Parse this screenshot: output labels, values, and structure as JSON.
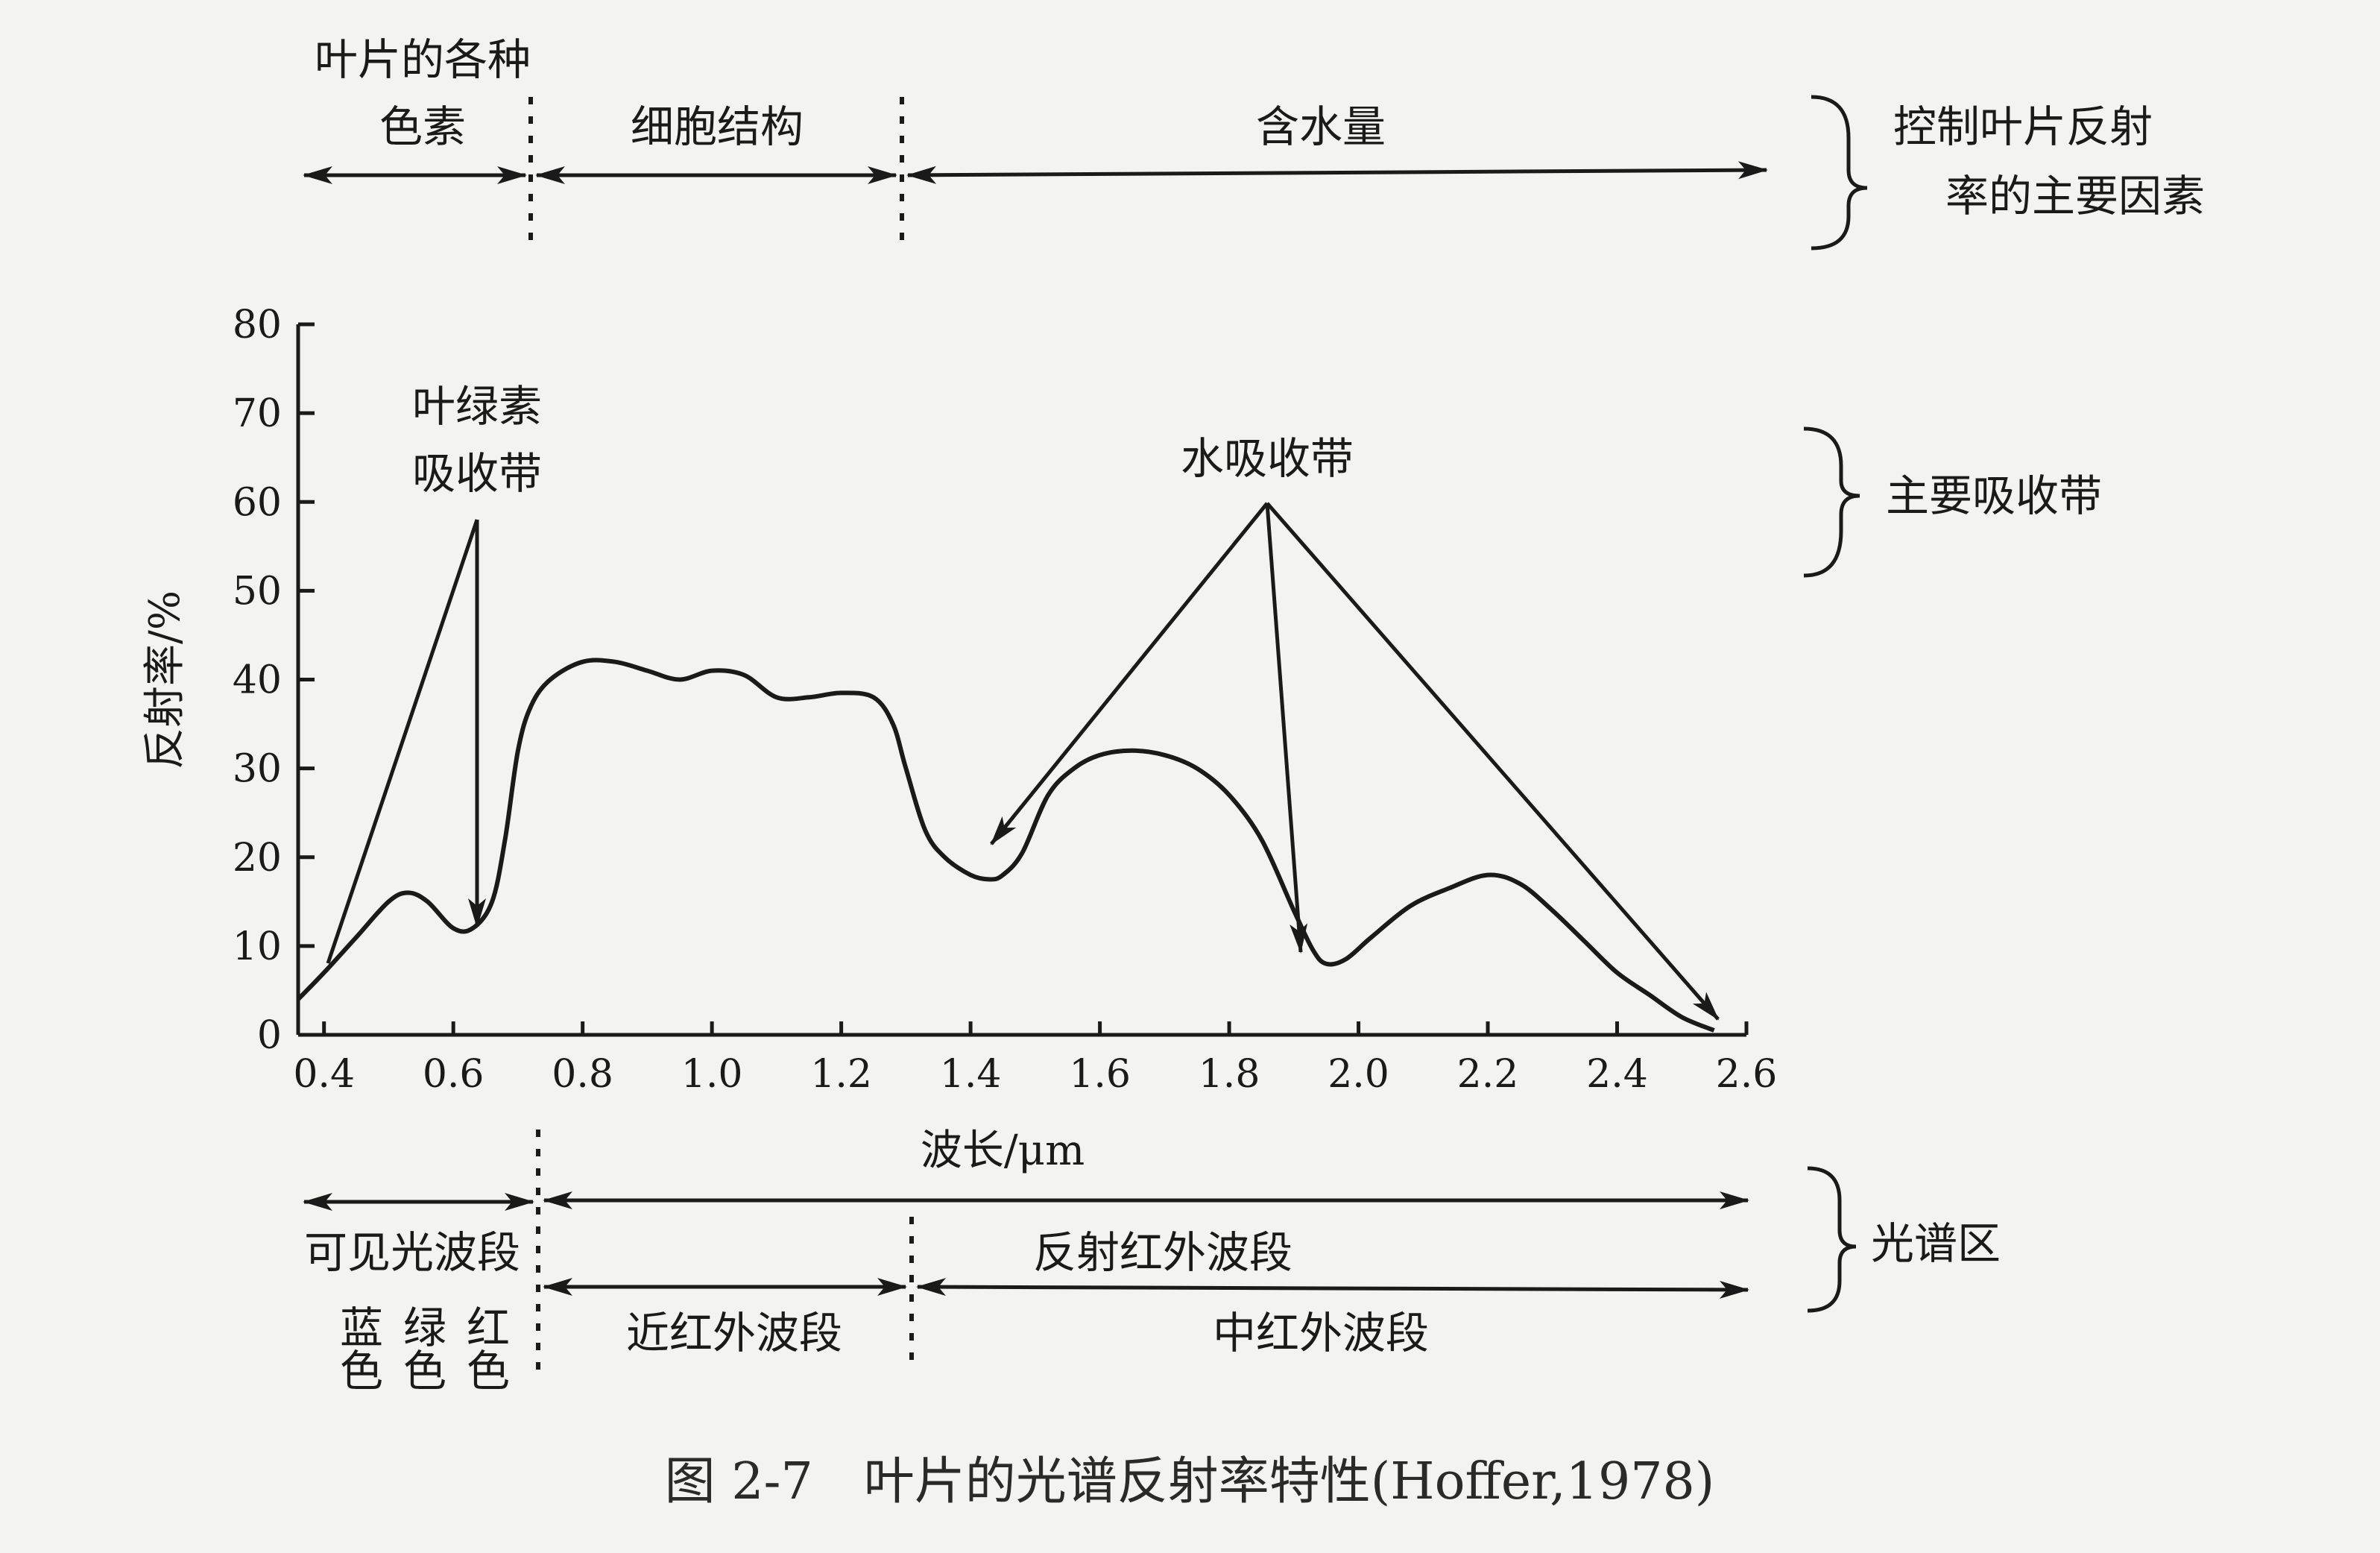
{
  "caption": "图 2-7　叶片的光谱反射率特性(Hoffer,1978)",
  "top": {
    "factors": [
      {
        "lines": [
          "叶片的各种",
          "色素"
        ]
      },
      {
        "lines": [
          "细胞结构"
        ]
      },
      {
        "lines": [
          "含水量"
        ]
      }
    ],
    "brace_label": [
      "控制叶片反射",
      "率的主要因素"
    ]
  },
  "absorption": {
    "chlorophyll": [
      "叶绿素",
      "吸收带"
    ],
    "water": "水吸收带",
    "brace_label": "主要吸收带"
  },
  "bottom": {
    "row1": {
      "left": "可见光波段",
      "right": "反射红外波段"
    },
    "row2": {
      "left": [
        "蓝色",
        "绿色",
        "红色"
      ],
      "mid": "近红外波段",
      "right": "中红外波段"
    },
    "brace_label": "光谱区"
  },
  "chart_data": {
    "type": "line",
    "xlabel": "波长/μm",
    "ylabel": "反射率/%",
    "xlim": [
      0.36,
      2.6
    ],
    "ylim": [
      0,
      80
    ],
    "xticks": [
      "0.4",
      "0.6",
      "0.8",
      "1.0",
      "1.2",
      "1.4",
      "1.6",
      "1.8",
      "2.0",
      "2.2",
      "2.4",
      "2.6"
    ],
    "yticks": [
      "0",
      "10",
      "20",
      "30",
      "40",
      "50",
      "60",
      "70",
      "80"
    ],
    "series": [
      {
        "x": [
          0.36,
          0.4,
          0.45,
          0.5,
          0.53,
          0.56,
          0.6,
          0.63,
          0.66,
          0.68,
          0.7,
          0.72,
          0.75,
          0.8,
          0.85,
          0.9,
          0.95,
          1.0,
          1.05,
          1.1,
          1.15,
          1.2,
          1.25,
          1.28,
          1.3,
          1.33,
          1.36,
          1.4,
          1.43,
          1.45,
          1.48,
          1.52,
          1.56,
          1.6,
          1.65,
          1.7,
          1.75,
          1.8,
          1.85,
          1.9,
          1.93,
          1.95,
          1.98,
          2.02,
          2.08,
          2.14,
          2.2,
          2.25,
          2.3,
          2.35,
          2.4,
          2.45,
          2.5,
          2.55
        ],
        "y": [
          4,
          7,
          11,
          15,
          16,
          15,
          12,
          12,
          15,
          22,
          32,
          37,
          40,
          42,
          42,
          41,
          40,
          41,
          40.5,
          38,
          38,
          38.5,
          38,
          35,
          30,
          23,
          20,
          18,
          17.5,
          18,
          20.5,
          27,
          30,
          31.5,
          32,
          31.5,
          30,
          27,
          22,
          14,
          9.5,
          8,
          8.5,
          11,
          14.5,
          16.5,
          18,
          17,
          14,
          10.5,
          7,
          4.5,
          2,
          0.5
        ]
      }
    ]
  }
}
